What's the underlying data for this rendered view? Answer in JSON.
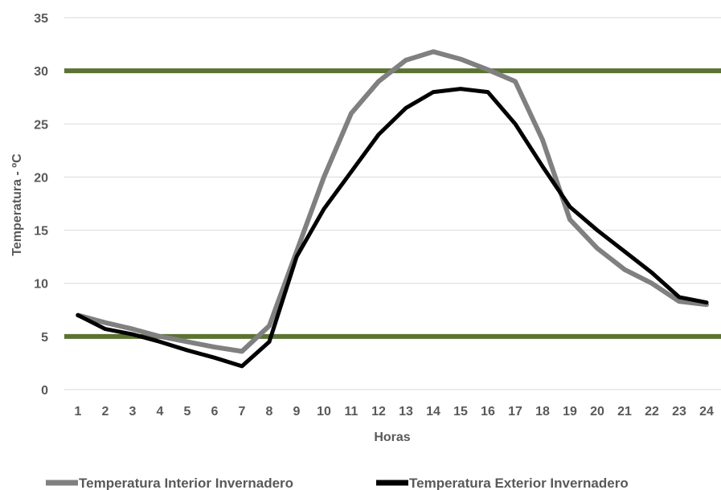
{
  "chart_data": {
    "type": "line",
    "xlabel": "Horas",
    "ylabel": "Temperatura - ºC",
    "ylim": [
      0,
      35
    ],
    "yticks": [
      0,
      5,
      10,
      15,
      20,
      25,
      30,
      35
    ],
    "grid": true,
    "legend_position": "bottom",
    "categories": [
      "1",
      "2",
      "3",
      "4",
      "5",
      "6",
      "7",
      "8",
      "9",
      "10",
      "11",
      "12",
      "13",
      "14",
      "15",
      "16",
      "17",
      "18",
      "19",
      "20",
      "21",
      "22",
      "23",
      "24"
    ],
    "series": [
      {
        "name": "Temperatura Interior Invernadero",
        "color": "#808080",
        "values": [
          7.0,
          6.3,
          5.7,
          5.0,
          4.5,
          4.0,
          3.6,
          6.0,
          13.0,
          20.0,
          26.0,
          29.0,
          31.0,
          31.8,
          31.1,
          30.1,
          29.0,
          23.5,
          16.0,
          13.3,
          11.3,
          10.0,
          8.3,
          8.0
        ]
      },
      {
        "name": "Temperatura Exterior Invernadero",
        "color": "#000000",
        "values": [
          7.0,
          5.7,
          5.2,
          4.5,
          3.7,
          3.0,
          2.2,
          4.5,
          12.5,
          17.0,
          20.5,
          24.0,
          26.5,
          28.0,
          28.3,
          28.0,
          25.0,
          21.0,
          17.2,
          15.0,
          13.0,
          11.0,
          8.7,
          8.2
        ]
      }
    ],
    "reference_lines": [
      {
        "value": 30,
        "color": "#5b7332"
      },
      {
        "value": 5,
        "color": "#5b7332"
      }
    ],
    "gridline_color": "#d9d9d9"
  }
}
